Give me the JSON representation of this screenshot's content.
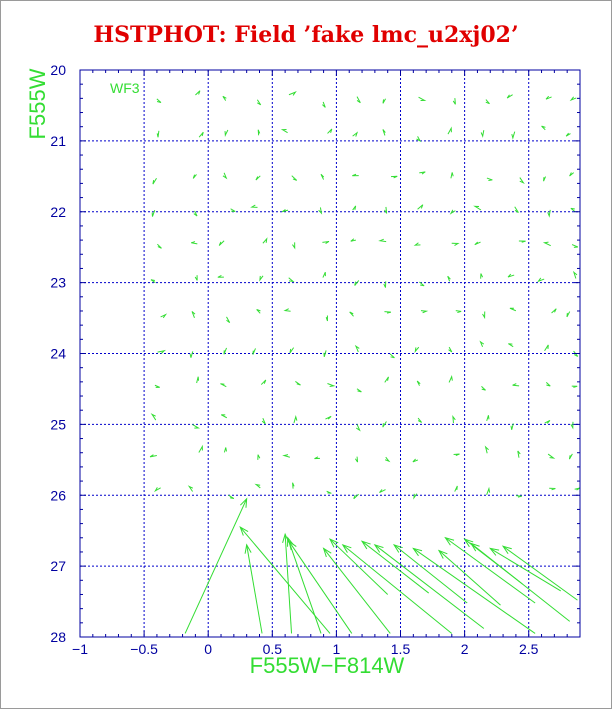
{
  "title": "HSTPHOT: Field ’fake lmc_u2xj02’",
  "chart_data": {
    "type": "scatter",
    "subtype": "vector-field",
    "title": "HSTPHOT: Field ’fake lmc_u2xj02’",
    "xlabel": "F555W−F814W",
    "ylabel": "F555W",
    "panel_label": "WF3",
    "xlim": [
      -1.0,
      2.9
    ],
    "ylim": [
      28.0,
      20.0
    ],
    "y_inverted": true,
    "xticks": [
      -1,
      -0.5,
      0,
      0.5,
      1,
      1.5,
      2,
      2.5
    ],
    "xtick_labels": [
      "−1",
      "−0.5",
      "0",
      "0.5",
      "1",
      "1.5",
      "2",
      "2.5"
    ],
    "yticks": [
      20,
      21,
      22,
      23,
      24,
      25,
      26,
      27,
      28
    ],
    "ytick_labels": [
      "20",
      "21",
      "22",
      "23",
      "24",
      "25",
      "26",
      "27",
      "28"
    ],
    "grid": true,
    "grid_x": [
      -0.5,
      0,
      0.5,
      1,
      1.5,
      2,
      2.5
    ],
    "grid_y": [
      21,
      22,
      23,
      24,
      25,
      26,
      27
    ],
    "colors": {
      "axes": "#0000a0",
      "grid": "#0000cc",
      "vectors": "#33dd33",
      "title": "#e00000",
      "axis_title": "#33dd33"
    },
    "vector_rows_y": [
      20.4,
      20.9,
      21.5,
      21.95,
      22.45,
      22.95,
      23.45,
      23.95,
      24.45,
      24.95,
      25.45,
      25.95
    ],
    "vector_cols_x": [
      -0.4,
      -0.1,
      0.15,
      0.4,
      0.65,
      0.9,
      1.15,
      1.4,
      1.65,
      1.9,
      2.15,
      2.4,
      2.65,
      2.85
    ],
    "vectors": [
      {
        "x0": 0.3,
        "y0": 26.05,
        "x1": -0.18,
        "y1": 27.95
      },
      {
        "x0": 0.25,
        "y0": 26.45,
        "x1": 0.95,
        "y1": 27.95
      },
      {
        "x0": 0.3,
        "y0": 26.7,
        "x1": 0.42,
        "y1": 27.95
      },
      {
        "x0": 0.6,
        "y0": 26.55,
        "x1": 0.65,
        "y1": 27.95
      },
      {
        "x0": 0.62,
        "y0": 26.6,
        "x1": 0.88,
        "y1": 27.95
      },
      {
        "x0": 0.63,
        "y0": 26.65,
        "x1": 1.12,
        "y1": 27.95
      },
      {
        "x0": 0.9,
        "y0": 26.75,
        "x1": 1.42,
        "y1": 27.95
      },
      {
        "x0": 0.95,
        "y0": 26.62,
        "x1": 1.4,
        "y1": 27.4
      },
      {
        "x0": 1.05,
        "y0": 26.7,
        "x1": 1.9,
        "y1": 27.95
      },
      {
        "x0": 1.2,
        "y0": 26.65,
        "x1": 1.72,
        "y1": 27.38
      },
      {
        "x0": 1.3,
        "y0": 26.7,
        "x1": 2.15,
        "y1": 27.88
      },
      {
        "x0": 1.45,
        "y0": 26.7,
        "x1": 2.02,
        "y1": 27.52
      },
      {
        "x0": 1.6,
        "y0": 26.75,
        "x1": 2.55,
        "y1": 27.95
      },
      {
        "x0": 1.8,
        "y0": 26.78,
        "x1": 2.28,
        "y1": 27.55
      },
      {
        "x0": 1.85,
        "y0": 26.6,
        "x1": 2.55,
        "y1": 27.52
      },
      {
        "x0": 2.0,
        "y0": 26.62,
        "x1": 2.45,
        "y1": 27.25
      },
      {
        "x0": 2.05,
        "y0": 26.68,
        "x1": 2.82,
        "y1": 27.78
      },
      {
        "x0": 2.2,
        "y0": 26.75,
        "x1": 2.75,
        "y1": 27.35
      },
      {
        "x0": 2.3,
        "y0": 26.72,
        "x1": 2.88,
        "y1": 27.48
      }
    ]
  }
}
